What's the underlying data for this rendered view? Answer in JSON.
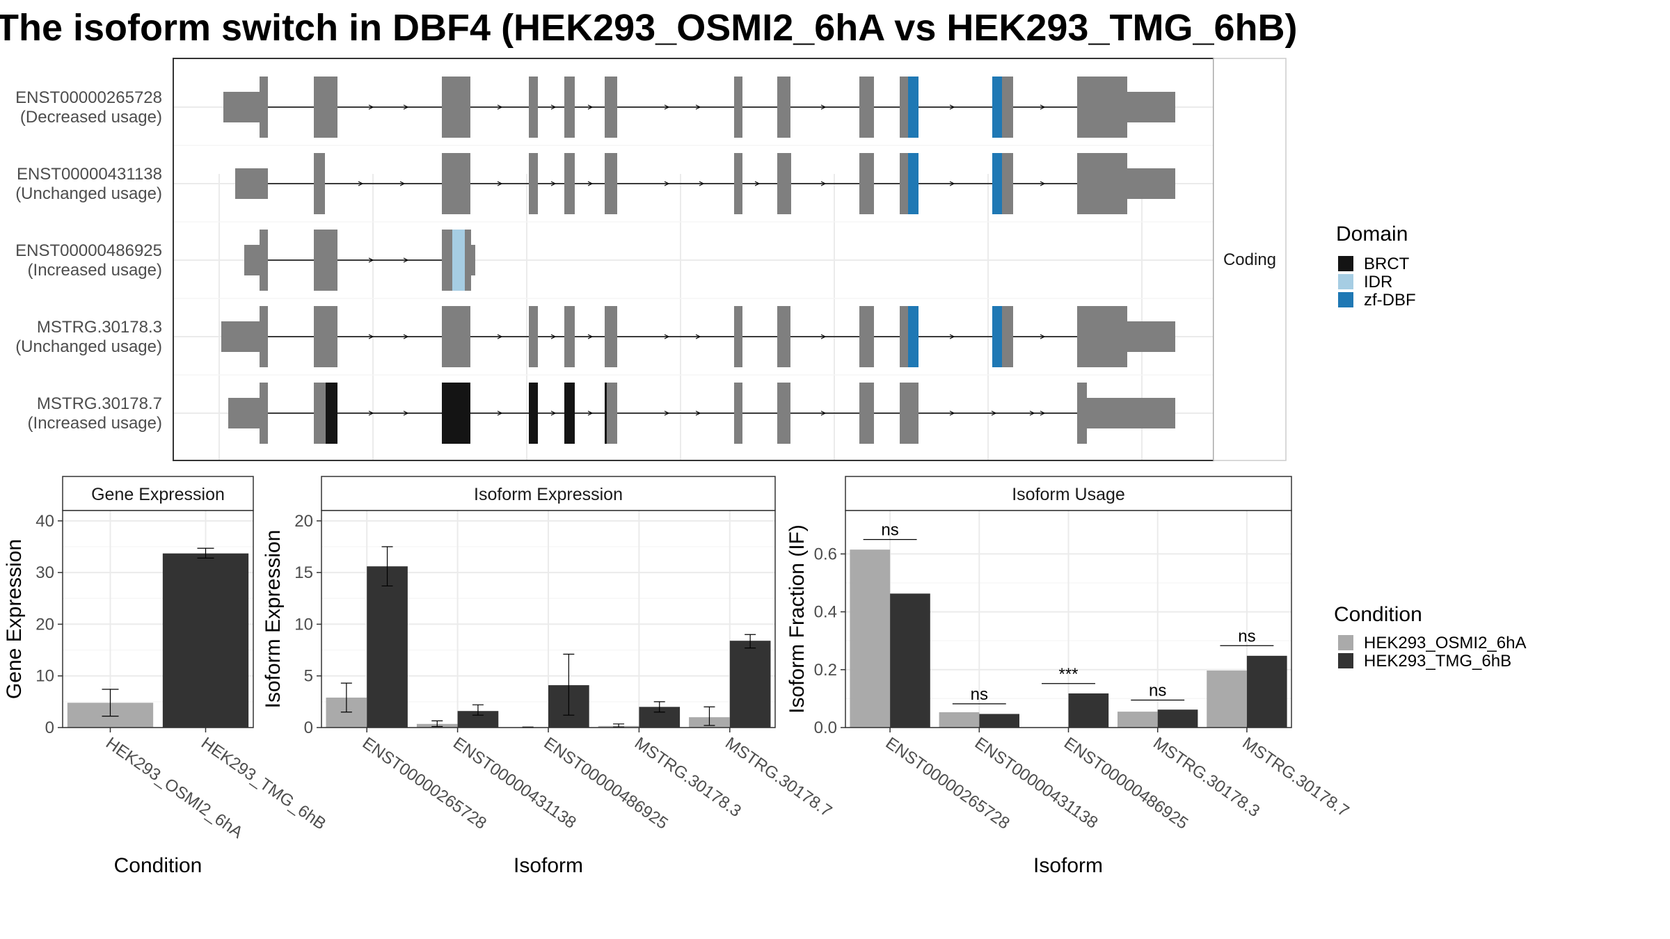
{
  "title": "The isoform switch in DBF4 (HEK293_OSMI2_6hA vs HEK293_TMG_6hB)",
  "colors": {
    "exon": "#7f7f7f",
    "BRCT": "#141414",
    "IDR": "#a6cde3",
    "zf-DBF": "#1f78b4",
    "cond_a": "#aaaaaa",
    "cond_b": "#333333"
  },
  "structure": {
    "strip_label": "Coding",
    "transcripts": [
      {
        "id": "ENST00000265728",
        "usage": "(Decreased usage)"
      },
      {
        "id": "ENST00000431138",
        "usage": "(Unchanged usage)"
      },
      {
        "id": "ENST00000486925",
        "usage": "(Increased usage)"
      },
      {
        "id": "MSTRG.30178.3",
        "usage": "(Unchanged usage)"
      },
      {
        "id": "MSTRG.30178.7",
        "usage": "(Increased usage)"
      }
    ]
  },
  "legend_domain": {
    "title": "Domain",
    "items": [
      {
        "label": "BRCT",
        "color": "#141414"
      },
      {
        "label": "IDR",
        "color": "#a6cde3"
      },
      {
        "label": "zf-DBF",
        "color": "#1f78b4"
      }
    ]
  },
  "legend_condition": {
    "title": "Condition",
    "items": [
      {
        "label": "HEK293_OSMI2_6hA",
        "color": "#aaaaaa"
      },
      {
        "label": "HEK293_TMG_6hB",
        "color": "#333333"
      }
    ]
  },
  "chart_data": [
    {
      "type": "bar",
      "title": "Gene Expression",
      "xlabel": "Condition",
      "ylabel": "Gene Expression",
      "categories": [
        "HEK293_OSMI2_6hA",
        "HEK293_TMG_6hB"
      ],
      "values": [
        4.8,
        33.7
      ],
      "error_low": [
        2.2,
        32.8
      ],
      "error_high": [
        7.4,
        34.7
      ],
      "ylim": [
        0,
        42
      ],
      "yticks": [
        0,
        10,
        20,
        30,
        40
      ],
      "grid": true
    },
    {
      "type": "bar",
      "title": "Isoform Expression",
      "xlabel": "Isoform",
      "ylabel": "Isoform Expression",
      "categories": [
        "ENST00000265728",
        "ENST00000431138",
        "ENST00000486925",
        "MSTRG.30178.3",
        "MSTRG.30178.7"
      ],
      "series": [
        {
          "name": "HEK293_OSMI2_6hA",
          "values": [
            2.9,
            0.35,
            0.0,
            0.15,
            1.0
          ],
          "error_low": [
            1.5,
            0.1,
            0.0,
            0.05,
            0.2
          ],
          "error_high": [
            4.3,
            0.65,
            0.05,
            0.35,
            2.0
          ]
        },
        {
          "name": "HEK293_TMG_6hB",
          "values": [
            15.6,
            1.6,
            4.1,
            2.0,
            8.4
          ],
          "error_low": [
            13.7,
            1.2,
            1.2,
            1.5,
            7.7
          ],
          "error_high": [
            17.5,
            2.2,
            7.1,
            2.5,
            9.0
          ]
        }
      ],
      "ylim": [
        0,
        21
      ],
      "yticks": [
        0,
        5,
        10,
        15,
        20
      ],
      "grid": true
    },
    {
      "type": "bar",
      "title": "Isoform Usage",
      "xlabel": "Isoform",
      "ylabel": "Isoform Fraction (IF)",
      "categories": [
        "ENST00000265728",
        "ENST00000431138",
        "ENST00000486925",
        "MSTRG.30178.3",
        "MSTRG.30178.7"
      ],
      "series": [
        {
          "name": "HEK293_OSMI2_6hA",
          "values": [
            0.615,
            0.053,
            0.0,
            0.055,
            0.197
          ]
        },
        {
          "name": "HEK293_TMG_6hB",
          "values": [
            0.463,
            0.047,
            0.118,
            0.062,
            0.248
          ]
        }
      ],
      "significance": [
        {
          "label": "ns",
          "y": 0.65
        },
        {
          "label": "ns",
          "y": 0.082
        },
        {
          "label": "***",
          "y": 0.152
        },
        {
          "label": "ns",
          "y": 0.095
        },
        {
          "label": "ns",
          "y": 0.283
        }
      ],
      "ylim": [
        0,
        0.75
      ],
      "yticks": [
        0.0,
        0.2,
        0.4,
        0.6
      ],
      "ytick_labels": [
        "0.0",
        "0.2",
        "0.4",
        "0.6"
      ],
      "grid": true
    }
  ]
}
